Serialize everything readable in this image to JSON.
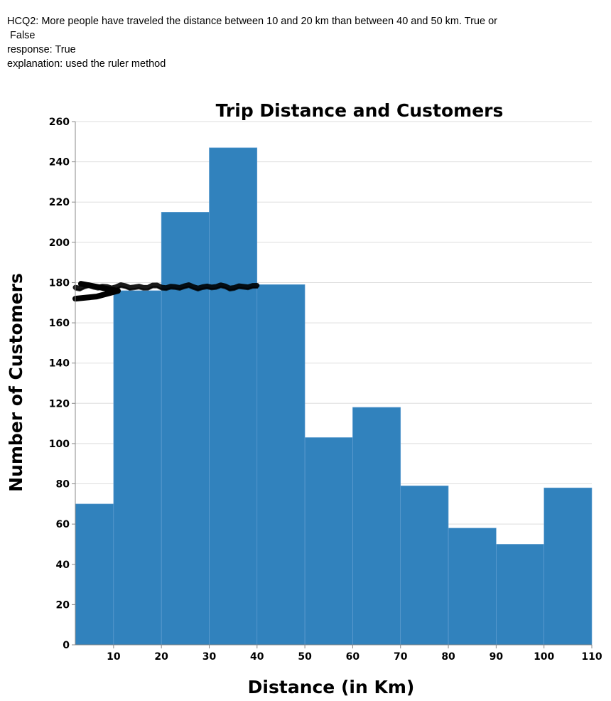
{
  "question": {
    "line1": "HCQ2: More people have traveled the distance between 10 and 20 km than between 40 and 50 km. True or",
    "line2": " False",
    "response": "response: True",
    "explanation": "explanation: used the ruler method"
  },
  "chart_data": {
    "type": "bar",
    "title": "Trip Distance and Customers",
    "xlabel": "Distance (in Km)",
    "ylabel": "Number of Customers",
    "bin_edges": [
      2,
      10,
      20,
      30,
      40,
      50,
      60,
      70,
      80,
      90,
      100,
      110
    ],
    "values": [
      70,
      176,
      215,
      247,
      179,
      103,
      118,
      79,
      58,
      50,
      78
    ],
    "xlim": [
      2,
      110
    ],
    "ylim": [
      0,
      260
    ],
    "x_ticks": [
      "10",
      "20",
      "30",
      "40",
      "50",
      "60",
      "70",
      "80",
      "90",
      "100",
      "110"
    ],
    "y_ticks": [
      "0",
      "20",
      "40",
      "60",
      "80",
      "100",
      "120",
      "140",
      "160",
      "180",
      "200",
      "220",
      "240",
      "260"
    ],
    "grid": "horizontal",
    "bar_color": "#3182bd",
    "annotation": {
      "type": "hand-drawn line",
      "color": "#000000",
      "x_range": [
        2,
        40
      ],
      "y_value": 178
    }
  }
}
